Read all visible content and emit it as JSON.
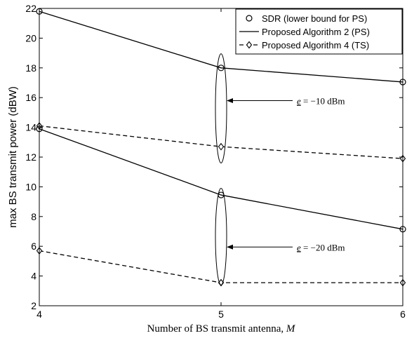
{
  "chart_data": {
    "type": "line",
    "xlabel_prefix": "Number of BS transmit antenna, ",
    "xlabel_var": "M",
    "ylabel": "max BS transmit power (dBW)",
    "x_ticks": [
      4,
      5,
      6
    ],
    "y_ticks": [
      2,
      4,
      6,
      8,
      10,
      12,
      14,
      16,
      18,
      20,
      22
    ],
    "xlim": [
      4,
      6
    ],
    "ylim": [
      2,
      22
    ],
    "grid": false,
    "legend_position": "top-right",
    "legend": [
      {
        "label": "SDR (lower bound for PS)",
        "style": "circle-marker"
      },
      {
        "label": "Proposed Algorithm 2 (PS)",
        "style": "solid-line"
      },
      {
        "label": "Proposed Algorithm 4 (TS)",
        "style": "dashed-line-diamond"
      }
    ],
    "series": [
      {
        "name": "SDR (lower bound for PS)",
        "group": "e = -10 dBm",
        "style": "circle",
        "x": [
          4,
          5,
          6
        ],
        "y": [
          21.8,
          18.0,
          17.05
        ]
      },
      {
        "name": "Proposed Algorithm 2 (PS)",
        "group": "e = -10 dBm",
        "style": "solid",
        "x": [
          4,
          5,
          6
        ],
        "y": [
          21.8,
          18.0,
          17.05
        ]
      },
      {
        "name": "Proposed Algorithm 4 (TS)",
        "group": "e = -10 dBm",
        "style": "dashed-diamond",
        "x": [
          4,
          5,
          6
        ],
        "y": [
          14.1,
          12.7,
          11.9
        ]
      },
      {
        "name": "SDR (lower bound for PS)",
        "group": "e = -20 dBm",
        "style": "circle",
        "x": [
          4,
          5,
          6
        ],
        "y": [
          13.9,
          9.45,
          7.15
        ]
      },
      {
        "name": "Proposed Algorithm 2 (PS)",
        "group": "e = -20 dBm",
        "style": "solid",
        "x": [
          4,
          5,
          6
        ],
        "y": [
          13.9,
          9.45,
          7.15
        ]
      },
      {
        "name": "Proposed Algorithm 4 (TS)",
        "group": "e = -20 dBm",
        "style": "dashed-diamond",
        "x": [
          4,
          5,
          6
        ],
        "y": [
          5.7,
          3.55,
          3.55
        ]
      }
    ],
    "annotations": [
      {
        "var": "e",
        "text": " = −10 dBm",
        "ellipse_x": 5,
        "ellipse_y_range": [
          11.6,
          18.95
        ],
        "arrow_to_y": 15.8
      },
      {
        "var": "e",
        "text": " = −20 dBm",
        "ellipse_x": 5,
        "ellipse_y_range": [
          3.4,
          9.9
        ],
        "arrow_to_y": 5.95
      }
    ]
  }
}
